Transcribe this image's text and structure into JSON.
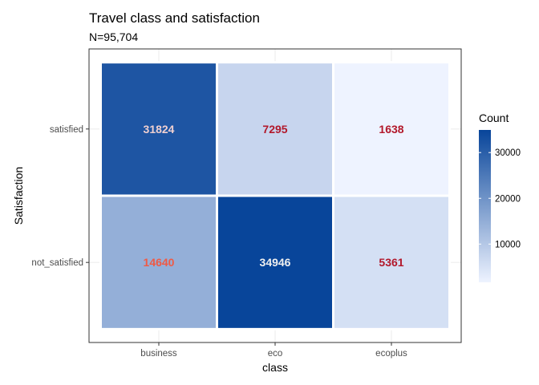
{
  "chart_data": {
    "type": "heatmap",
    "title": "Travel class and satisfaction",
    "subtitle": "N=95,704",
    "xlabel": "class",
    "ylabel": "Satisfaction",
    "x_categories": [
      "business",
      "eco",
      "ecoplus"
    ],
    "y_categories": [
      "satisfied",
      "not_satisfied"
    ],
    "cells": [
      {
        "x": "business",
        "y": "satisfied",
        "value": 31824,
        "label_color": "#f0d0d0"
      },
      {
        "x": "eco",
        "y": "satisfied",
        "value": 7295,
        "label_color": "#b2182b"
      },
      {
        "x": "ecoplus",
        "y": "satisfied",
        "value": 1638,
        "label_color": "#b2182b"
      },
      {
        "x": "business",
        "y": "not_satisfied",
        "value": 14640,
        "label_color": "#ef5a45"
      },
      {
        "x": "eco",
        "y": "not_satisfied",
        "value": 34946,
        "label_color": "#f0f0f0"
      },
      {
        "x": "ecoplus",
        "y": "not_satisfied",
        "value": 5361,
        "label_color": "#b2182b"
      }
    ],
    "legend": {
      "title": "Count",
      "ticks": [
        10000,
        20000,
        30000
      ],
      "tick_labels": [
        "10000",
        "20000",
        "30000"
      ],
      "min": 1638,
      "max": 34946,
      "color_low": "#eef3ff",
      "color_high": "#08459a",
      "placement": "right"
    },
    "grid": true
  }
}
